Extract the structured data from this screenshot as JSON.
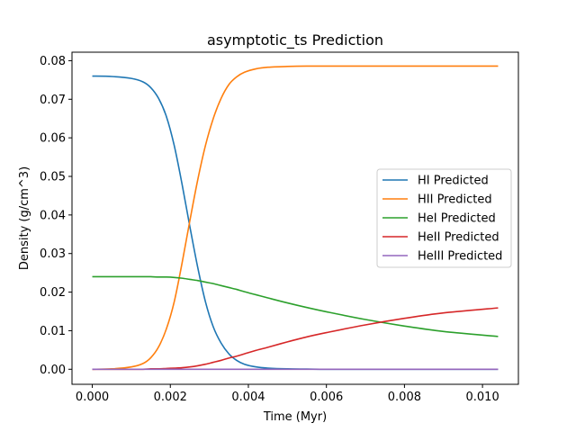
{
  "chart_data": {
    "type": "line",
    "title": "asymptotic_ts Prediction",
    "xlabel": "Time (Myr)",
    "ylabel": "Density (g/cm^3)",
    "xlim": [
      -0.00052,
      0.01092
    ],
    "ylim": [
      -0.0039,
      0.0822
    ],
    "x_ticks": [
      0.0,
      0.002,
      0.004,
      0.006,
      0.008,
      0.01
    ],
    "x_tick_labels": [
      "0.000",
      "0.002",
      "0.004",
      "0.006",
      "0.008",
      "0.010"
    ],
    "y_ticks": [
      0.0,
      0.01,
      0.02,
      0.03,
      0.04,
      0.05,
      0.06,
      0.07,
      0.08
    ],
    "y_tick_labels": [
      "0.00",
      "0.01",
      "0.02",
      "0.03",
      "0.04",
      "0.05",
      "0.06",
      "0.07",
      "0.08"
    ],
    "grid": false,
    "legend_position": "center-right",
    "x": [
      0.0,
      0.0005,
      0.001,
      0.0013,
      0.0015,
      0.0017,
      0.0019,
      0.0021,
      0.0023,
      0.0025,
      0.0027,
      0.0029,
      0.0031,
      0.0033,
      0.0035,
      0.0037,
      0.0039,
      0.0042,
      0.0045,
      0.005,
      0.0055,
      0.006,
      0.007,
      0.008,
      0.009,
      0.0104
    ],
    "series": [
      {
        "name": "HI Predicted",
        "color": "#1f77b4",
        "values": [
          0.076,
          0.0759,
          0.0754,
          0.0745,
          0.073,
          0.0702,
          0.0655,
          0.058,
          0.048,
          0.037,
          0.0265,
          0.0175,
          0.011,
          0.0068,
          0.004,
          0.0023,
          0.0013,
          0.0006,
          0.0003,
          0.0001,
          5e-05,
          0.0,
          0.0,
          0.0,
          0.0,
          0.0
        ]
      },
      {
        "name": "HII Predicted",
        "color": "#ff7f0e",
        "values": [
          0.0,
          0.0001,
          0.0006,
          0.0015,
          0.003,
          0.0058,
          0.0105,
          0.0175,
          0.0275,
          0.0385,
          0.049,
          0.058,
          0.065,
          0.0702,
          0.0738,
          0.0758,
          0.077,
          0.0779,
          0.0783,
          0.0785,
          0.0786,
          0.0786,
          0.0786,
          0.0786,
          0.0786,
          0.0786
        ]
      },
      {
        "name": "HeI Predicted",
        "color": "#2ca02c",
        "values": [
          0.024,
          0.024,
          0.024,
          0.024,
          0.024,
          0.0239,
          0.0239,
          0.0238,
          0.0236,
          0.0233,
          0.023,
          0.0226,
          0.0222,
          0.0217,
          0.0212,
          0.0207,
          0.0201,
          0.0193,
          0.0185,
          0.0172,
          0.016,
          0.0149,
          0.0129,
          0.0112,
          0.0098,
          0.0085
        ]
      },
      {
        "name": "HeII Predicted",
        "color": "#d62728",
        "values": [
          0.0,
          0.0,
          0.0,
          0.0,
          0.0001,
          0.0001,
          0.0002,
          0.0003,
          0.0004,
          0.0006,
          0.0009,
          0.0013,
          0.0018,
          0.0023,
          0.0029,
          0.0034,
          0.004,
          0.0049,
          0.0057,
          0.0071,
          0.0084,
          0.0095,
          0.0115,
          0.0132,
          0.0146,
          0.0159
        ]
      },
      {
        "name": "HeIII Predicted",
        "color": "#9467bd",
        "values": [
          0.0,
          0.0,
          0.0,
          0.0,
          0.0,
          0.0,
          0.0,
          0.0,
          0.0,
          0.0,
          0.0,
          0.0,
          0.0,
          0.0,
          0.0,
          0.0,
          0.0,
          0.0,
          0.0,
          0.0,
          0.0,
          0.0,
          0.0,
          0.0,
          0.0,
          0.0
        ]
      }
    ]
  }
}
